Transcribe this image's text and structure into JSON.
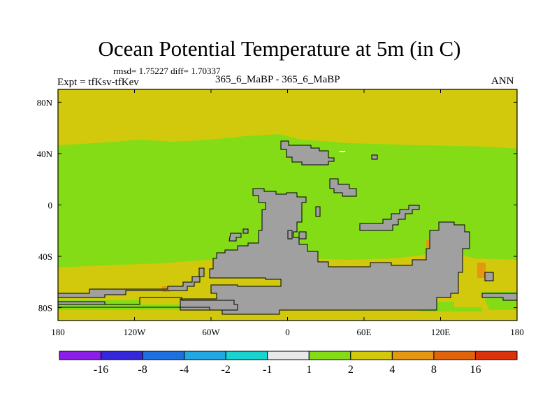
{
  "chart_data": {
    "type": "heatmap",
    "title": "Ocean Potential Temperature at 5m (in C)",
    "stats_text": "rmsd= 1.75227  diff= 1.70337",
    "expt_text": "Expt = tfKsv-tfKev",
    "case_text": "365_6_MaBP - 365_6_MaBP",
    "season": "ANN",
    "x_axis": {
      "range": [
        -180,
        180
      ],
      "ticks": [
        "180",
        "120W",
        "60W",
        "0",
        "60E",
        "120E",
        "180"
      ]
    },
    "y_axis": {
      "range": [
        -90,
        90
      ],
      "ticks": [
        "80N",
        "40N",
        "0",
        "40S",
        "80S"
      ]
    },
    "colorbar": {
      "levels": [
        "-16",
        "-8",
        "-4",
        "-2",
        "-1",
        "1",
        "2",
        "4",
        "8",
        "16"
      ],
      "colors": [
        "#8a1ee6",
        "#3526d9",
        "#1f6fde",
        "#21a8e0",
        "#18d3cf",
        "#e8e8e8",
        "#84dc16",
        "#d2c80c",
        "#e49812",
        "#e0640c",
        "#dc320c"
      ]
    },
    "zones": [
      {
        "band": "north polar",
        "lat_range": [
          48,
          90
        ],
        "category": "2 to 4"
      },
      {
        "band": "north mid-latitude to tropics",
        "lat_range": [
          -48,
          48
        ],
        "category": "1 to 2"
      },
      {
        "band": "south polar",
        "lat_range": [
          -90,
          -48
        ],
        "category": "2 to 4"
      }
    ],
    "land_color": "#a0a0a0"
  }
}
